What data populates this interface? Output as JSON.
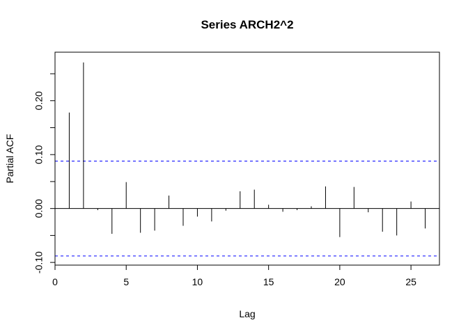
{
  "chart_data": {
    "type": "bar",
    "title": "Series  ARCH2^2",
    "xlabel": "Lag",
    "ylabel": "Partial ACF",
    "xlim": [
      0,
      27
    ],
    "ylim": [
      -0.105,
      0.29
    ],
    "x_ticks": [
      0,
      5,
      10,
      15,
      20,
      25
    ],
    "x_tick_labels": [
      "0",
      "5",
      "10",
      "15",
      "20",
      "25"
    ],
    "y_ticks": [
      -0.1,
      0.0,
      0.1,
      0.2
    ],
    "y_tick_labels": [
      "-0.10",
      "0.00",
      "0.10",
      "0.20"
    ],
    "grid": false,
    "series": [
      {
        "lag": [
          1,
          2,
          3,
          4,
          5,
          6,
          7,
          8,
          9,
          10,
          11,
          12,
          13,
          14,
          15,
          16,
          17,
          18,
          19,
          20,
          21,
          22,
          23,
          24,
          25,
          26
        ],
        "values": [
          0.178,
          0.271,
          -0.003,
          -0.047,
          0.049,
          -0.045,
          -0.041,
          0.024,
          -0.032,
          -0.015,
          -0.024,
          -0.004,
          0.032,
          0.035,
          0.007,
          -0.006,
          -0.003,
          0.004,
          0.041,
          -0.053,
          0.04,
          -0.007,
          -0.043,
          -0.05,
          0.013,
          -0.037
        ]
      }
    ],
    "confidence_bounds": {
      "upper": 0.088,
      "lower": -0.088,
      "color": "#0000ff",
      "style": "dashed"
    },
    "colors": {
      "bars": "#000000",
      "zero_line": "#000000",
      "confidence": "#0000ff"
    }
  }
}
